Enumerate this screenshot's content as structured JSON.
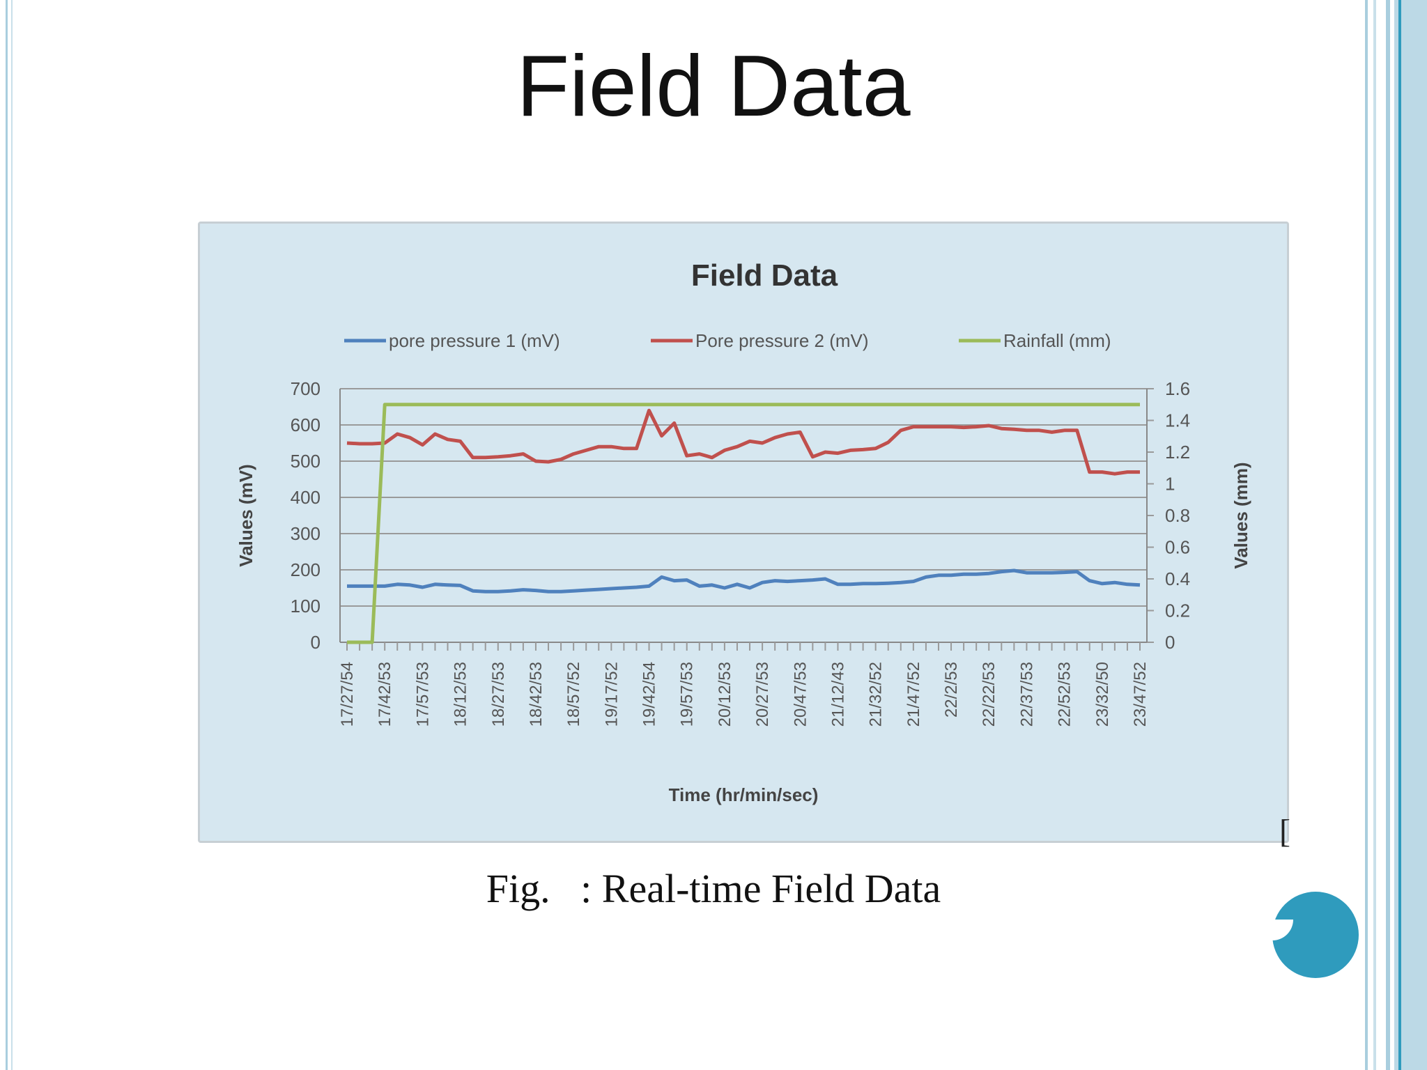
{
  "slide": {
    "title": "Field Data",
    "caption": "Fig.   : Real-time Field Data",
    "bracket": "["
  },
  "colors": {
    "chart_background": "#d6e7f0",
    "frame_accent": "#2f9bbd",
    "frame_light": "#a9cede",
    "series_1": "#4f81bd",
    "series_2": "#c0504d",
    "series_3": "#9bbb59",
    "nav_dot": "#2f9bbd"
  },
  "chart_data": {
    "type": "line",
    "title": "Field Data",
    "xlabel": "Time (hr/min/sec)",
    "ylabel": "Values (mV)",
    "y2label": "Values (mm)",
    "ylim": [
      0,
      700
    ],
    "y2lim": [
      0,
      1.6
    ],
    "yticks": [
      "0",
      "100",
      "200",
      "300",
      "400",
      "500",
      "600",
      "700"
    ],
    "y2ticks": [
      "0",
      "0.2",
      "0.4",
      "0.6",
      "0.8",
      "1",
      "1.2",
      "1.4",
      "1.6"
    ],
    "grid": true,
    "legend": "top",
    "x_tick_labels": [
      "17/27/54",
      "17/42/53",
      "17/57/53",
      "18/12/53",
      "18/27/53",
      "18/42/53",
      "18/57/52",
      "19/17/52",
      "19/42/54",
      "19/57/53",
      "20/12/53",
      "20/27/53",
      "20/47/53",
      "21/12/43",
      "21/32/52",
      "21/47/52",
      "22/2/53",
      "22/22/53",
      "22/37/53",
      "22/52/53",
      "23/32/50",
      "23/47/52"
    ],
    "x_count": 64,
    "series": [
      {
        "name": "pore pressure 1 (mV)",
        "axis": "left",
        "values": [
          155,
          155,
          155,
          155,
          160,
          158,
          152,
          160,
          158,
          157,
          142,
          140,
          140,
          142,
          145,
          143,
          140,
          140,
          142,
          144,
          146,
          148,
          150,
          152,
          155,
          180,
          170,
          172,
          155,
          158,
          150,
          160,
          150,
          165,
          170,
          168,
          170,
          172,
          175,
          160,
          160,
          162,
          162,
          163,
          165,
          168,
          180,
          185,
          185,
          188,
          188,
          190,
          195,
          198,
          192,
          192,
          192,
          193,
          195,
          170,
          162,
          165,
          160,
          158
        ]
      },
      {
        "name": "Pore pressure 2 (mV)",
        "axis": "left",
        "values": [
          550,
          548,
          548,
          550,
          575,
          565,
          545,
          575,
          560,
          555,
          510,
          510,
          512,
          515,
          520,
          500,
          498,
          505,
          520,
          530,
          540,
          540,
          535,
          535,
          640,
          570,
          605,
          515,
          520,
          510,
          530,
          540,
          555,
          550,
          565,
          575,
          580,
          512,
          525,
          522,
          530,
          532,
          535,
          552,
          585,
          595,
          595,
          595,
          595,
          593,
          595,
          598,
          590,
          588,
          585,
          585,
          580,
          585,
          585,
          470,
          470,
          465,
          470,
          470
        ]
      },
      {
        "name": "Rainfall (mm)",
        "axis": "right",
        "values": [
          0,
          0,
          0,
          1.5,
          1.5,
          1.5,
          1.5,
          1.5,
          1.5,
          1.5,
          1.5,
          1.5,
          1.5,
          1.5,
          1.5,
          1.5,
          1.5,
          1.5,
          1.5,
          1.5,
          1.5,
          1.5,
          1.5,
          1.5,
          1.5,
          1.5,
          1.5,
          1.5,
          1.5,
          1.5,
          1.5,
          1.5,
          1.5,
          1.5,
          1.5,
          1.5,
          1.5,
          1.5,
          1.5,
          1.5,
          1.5,
          1.5,
          1.5,
          1.5,
          1.5,
          1.5,
          1.5,
          1.5,
          1.5,
          1.5,
          1.5,
          1.5,
          1.5,
          1.5,
          1.5,
          1.5,
          1.5,
          1.5,
          1.5,
          1.5,
          1.5,
          1.5,
          1.5,
          1.5
        ]
      }
    ]
  }
}
